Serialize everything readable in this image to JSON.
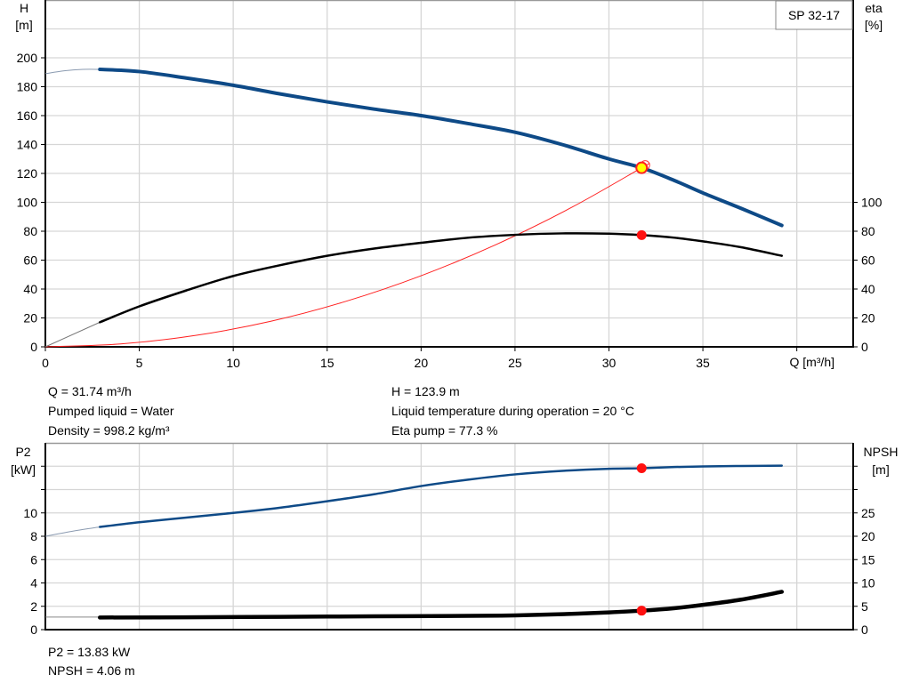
{
  "title": "SP 32-17",
  "chart_data": [
    {
      "type": "line",
      "title": "SP 32-17",
      "xlabel": "Q [m³/h]",
      "xlim": [
        0,
        43
      ],
      "x_ticks": [
        "0",
        "5",
        "10",
        "15",
        "20",
        "25",
        "30",
        "35"
      ],
      "ylabel_left": {
        "name": "H",
        "unit": "[m]"
      },
      "ylim_left": [
        0,
        240
      ],
      "y_ticks_left": [
        "0",
        "20",
        "40",
        "60",
        "80",
        "100",
        "120",
        "140",
        "160",
        "180",
        "200"
      ],
      "ylabel_right": {
        "name": "eta",
        "unit": "[%]"
      },
      "ylim_right": [
        0,
        240
      ],
      "y_ticks_right": [
        "0",
        "20",
        "40",
        "60",
        "80",
        "100"
      ],
      "grid": true,
      "series": [
        {
          "key": "H",
          "color": "#0e4a87",
          "extrapolated": {
            "x": [
              0,
              1,
              2,
              2.9
            ],
            "y": [
              189,
              191,
              192,
              192
            ]
          },
          "x": [
            2.9,
            5,
            7.5,
            10,
            12.5,
            15,
            17.5,
            20,
            22.5,
            25,
            27.5,
            30,
            31.74,
            33.5,
            35,
            37,
            39.2
          ],
          "y": [
            192,
            190.5,
            186,
            181,
            175,
            169.5,
            164.5,
            160,
            154.5,
            148.5,
            140,
            130,
            123.9,
            115,
            106.5,
            96,
            84
          ]
        },
        {
          "key": "eta",
          "color": "#000000",
          "extrapolated": {
            "x": [
              0,
              2.9
            ],
            "y": [
              0,
              17
            ]
          },
          "x": [
            2.9,
            5,
            7.5,
            10,
            12.5,
            15,
            17.5,
            20,
            22.5,
            25,
            27.5,
            30,
            31.74,
            33.5,
            35,
            37,
            39.2
          ],
          "y": [
            17,
            28,
            39,
            49,
            56.5,
            63,
            68,
            72,
            75.5,
            77.5,
            78.5,
            78.3,
            77.3,
            75.5,
            73,
            69,
            63
          ]
        },
        {
          "key": "system-curve",
          "color": "#ff2020",
          "x": [
            0,
            4,
            8,
            12,
            16,
            20,
            24,
            28,
            31.74,
            32.1
          ],
          "y": [
            0,
            2,
            7.9,
            17.7,
            31.5,
            49.2,
            70.8,
            96.4,
            123.9,
            126.5
          ]
        }
      ],
      "operating_point": {
        "Q": 31.74,
        "H": 123.9,
        "eta": 77.3
      }
    },
    {
      "type": "line",
      "xlim": [
        0,
        43
      ],
      "ylabel_left": {
        "name": "P2",
        "unit": "[kW]"
      },
      "ylim_left": [
        0,
        16
      ],
      "y_ticks_left": [
        "0",
        "2",
        "4",
        "6",
        "8",
        "10",
        "",
        ""
      ],
      "ylabel_right": {
        "name": "NPSH",
        "unit": "[m]"
      },
      "ylim_right": [
        0,
        40
      ],
      "y_ticks_right": [
        "0",
        "5",
        "10",
        "15",
        "20",
        "25",
        "",
        ""
      ],
      "grid": true,
      "series": [
        {
          "key": "P2",
          "color": "#0e4a87",
          "extrapolated": {
            "x": [
              0,
              1.5,
              2.9
            ],
            "y": [
              8,
              8.45,
              8.8
            ]
          },
          "x": [
            2.9,
            5,
            7.5,
            10,
            12.5,
            15,
            17.5,
            20,
            22.5,
            25,
            27.5,
            30,
            31.74,
            33.5,
            35,
            37,
            39.2
          ],
          "y": [
            8.8,
            9.2,
            9.6,
            10,
            10.45,
            11,
            11.6,
            12.3,
            12.85,
            13.3,
            13.6,
            13.78,
            13.83,
            13.93,
            13.98,
            14.02,
            14.05
          ]
        },
        {
          "key": "NPSH",
          "color": "#000000",
          "extrapolated": {
            "x": [
              0,
              2.9
            ],
            "y": [
              2.7,
              2.7
            ]
          },
          "x": [
            2.9,
            7.5,
            12.5,
            17.5,
            22.5,
            25,
            27.5,
            30,
            31.74,
            33.5,
            35,
            37,
            39.2
          ],
          "y": [
            2.6,
            2.65,
            2.75,
            2.85,
            2.95,
            3.05,
            3.3,
            3.7,
            4.06,
            4.6,
            5.3,
            6.4,
            8.1
          ]
        }
      ],
      "operating_point": {
        "Q": 31.74,
        "P2": 13.83,
        "NPSH": 4.06
      }
    }
  ],
  "info_top": {
    "left": [
      "Q = 31.74 m³/h",
      "Pumped liquid = Water",
      "Density = 998.2 kg/m³"
    ],
    "right": [
      "H = 123.9 m",
      "Liquid temperature during operation = 20 °C",
      "Eta pump = 77.3 %"
    ]
  },
  "info_bottom": [
    "P2 = 13.83 kW",
    "NPSH = 4.06 m"
  ]
}
